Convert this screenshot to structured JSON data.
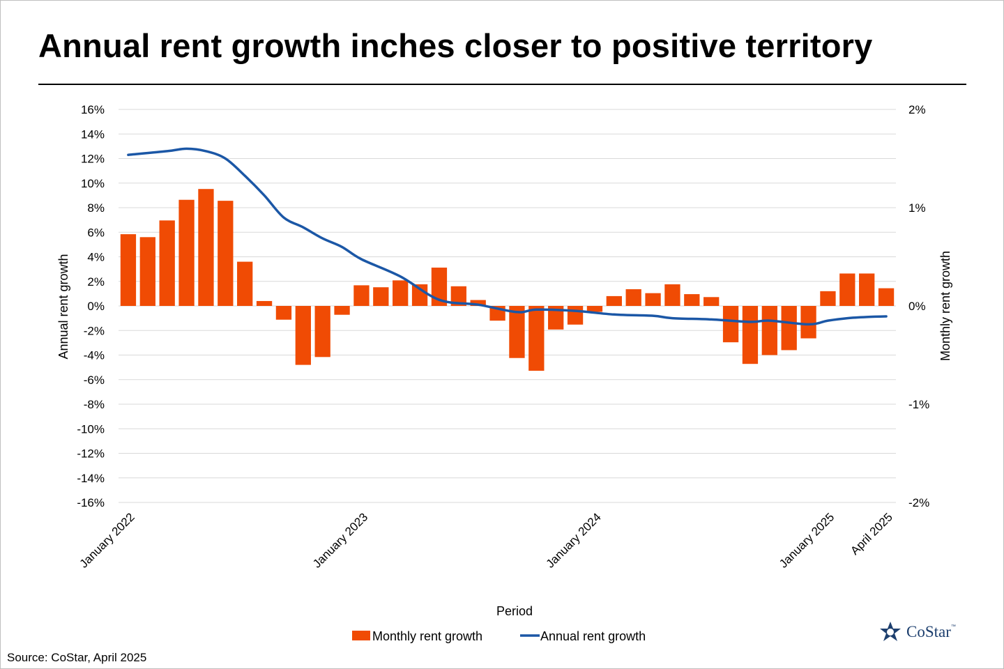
{
  "title": "Annual rent growth inches closer to positive territory",
  "source": "Source: CoStar, April 2025",
  "logo": {
    "word": "CoStar",
    "tm": "™"
  },
  "colors": {
    "bar": "#f04b04",
    "line": "#1b57a6",
    "grid": "#d9d9d9",
    "logo": "#1d3f6e"
  },
  "chart_data": {
    "type": "bar+line",
    "xlabel": "Period",
    "ylabel_left": "Annual rent growth",
    "ylabel_right": "Monthly rent growth",
    "y_left_range": [
      -16,
      16
    ],
    "y_left_ticks": [
      "16%",
      "14%",
      "12%",
      "10%",
      "8%",
      "6%",
      "4%",
      "2%",
      "0%",
      "-2%",
      "-4%",
      "-6%",
      "-8%",
      "-10%",
      "-12%",
      "-14%",
      "-16%"
    ],
    "y_right_range": [
      -2,
      2
    ],
    "y_right_ticks": [
      "2%",
      "1%",
      "0%",
      "-1%",
      "-2%"
    ],
    "grid": true,
    "legend_position": "bottom",
    "x_tick_labels": [
      {
        "index": 0,
        "label": "January 2022"
      },
      {
        "index": 12,
        "label": "January 2023"
      },
      {
        "index": 24,
        "label": "January 2024"
      },
      {
        "index": 36,
        "label": "January 2025"
      },
      {
        "index": 39,
        "label": "April 2025"
      }
    ],
    "series": [
      {
        "name": "Monthly rent growth",
        "type": "bar",
        "axis": "right",
        "unit": "%",
        "values": [
          0.73,
          0.7,
          0.87,
          1.08,
          1.19,
          1.07,
          0.45,
          0.05,
          -0.14,
          -0.6,
          -0.52,
          -0.09,
          0.21,
          0.19,
          0.26,
          0.22,
          0.39,
          0.2,
          0.06,
          -0.15,
          -0.53,
          -0.66,
          -0.24,
          -0.19,
          -0.06,
          0.1,
          0.17,
          0.13,
          0.22,
          0.12,
          0.09,
          -0.37,
          -0.59,
          -0.5,
          -0.45,
          -0.33,
          0.15,
          0.33,
          0.33,
          0.18
        ]
      },
      {
        "name": "Annual rent growth",
        "type": "line",
        "axis": "left",
        "unit": "%",
        "values": [
          12.3,
          12.6,
          12.8,
          12.6,
          12.0,
          10.6,
          9.0,
          7.2,
          6.4,
          5.5,
          4.8,
          3.8,
          2.4,
          0.5,
          0.1,
          -0.5,
          -0.3,
          -0.4,
          -0.7,
          -0.8,
          -1.0,
          -1.1,
          -1.3,
          -1.2,
          -1.5,
          -1.2,
          -1.0,
          -0.9,
          -0.85
        ]
      }
    ],
    "line_x_indices": [
      0,
      2,
      3,
      4,
      5,
      6,
      7,
      8,
      9,
      10,
      11,
      12,
      14,
      16,
      18,
      20,
      21,
      23,
      25,
      27,
      28,
      30,
      32,
      33,
      35,
      36,
      37,
      38,
      39
    ]
  }
}
